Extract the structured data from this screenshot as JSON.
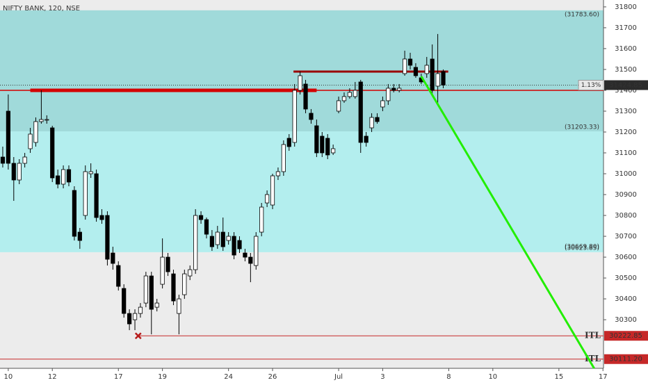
{
  "chart_data": {
    "type": "candlestick",
    "title": "NIFTY BANK, 120, NSE",
    "open": [
      31080,
      31300,
      31050,
      30970,
      31050,
      31120,
      31150,
      31250,
      31260,
      31220,
      30990,
      30950,
      31020,
      30920,
      30720,
      30800,
      31000,
      31000,
      30800,
      30800,
      30620,
      30560,
      30450,
      30330,
      30300,
      30330,
      30380,
      30510,
      30360,
      30470,
      30600,
      30520,
      30330,
      30420,
      30510,
      30540,
      30800,
      30780,
      30700,
      30660,
      30720,
      30680,
      30700,
      30680,
      30620,
      30600,
      30560,
      30720,
      30860,
      30850,
      30990,
      31010,
      31170,
      31150,
      31400,
      31430,
      31290,
      31230,
      31180,
      31170,
      31100,
      31300,
      31350,
      31370,
      31370,
      31440,
      31180,
      31220,
      31270,
      31320,
      31350,
      31410,
      31400,
      31480,
      31550,
      31510,
      31460,
      31480,
      31550,
      31420,
      31490
    ],
    "high": [
      31130,
      31380,
      31080,
      31070,
      31100,
      31220,
      31270,
      31400,
      31280,
      31230,
      31020,
      31040,
      31040,
      30940,
      30740,
      31040,
      31050,
      31020,
      30830,
      30820,
      30650,
      30580,
      30470,
      30350,
      30350,
      30380,
      30530,
      30530,
      30400,
      30690,
      30620,
      30540,
      30420,
      30540,
      30560,
      30830,
      30820,
      30790,
      30730,
      30750,
      30790,
      30720,
      30720,
      30700,
      30640,
      30620,
      30720,
      30860,
      30920,
      31000,
      31030,
      31160,
      31190,
      31430,
      31490,
      31450,
      31310,
      31260,
      31200,
      31190,
      31140,
      31370,
      31390,
      31410,
      31440,
      31450,
      31200,
      31290,
      31290,
      31370,
      31430,
      31430,
      31430,
      31590,
      31580,
      31530,
      31480,
      31560,
      31620,
      31670,
      31500
    ],
    "low": [
      31030,
      31020,
      30870,
      30950,
      31030,
      31100,
      31130,
      31240,
      31240,
      30960,
      30930,
      30930,
      30940,
      30680,
      30640,
      30780,
      30980,
      30770,
      30760,
      30560,
      30540,
      30440,
      30310,
      30250,
      30250,
      30310,
      30360,
      30230,
      30340,
      30450,
      30510,
      30370,
      30230,
      30400,
      30490,
      30520,
      30760,
      30690,
      30630,
      30640,
      30630,
      30660,
      30590,
      30620,
      30580,
      30480,
      30540,
      30700,
      30840,
      30830,
      30970,
      30990,
      31110,
      31130,
      31380,
      31290,
      31240,
      31080,
      31080,
      31070,
      31090,
      31290,
      31340,
      31360,
      31360,
      31100,
      31130,
      31200,
      31240,
      31300,
      31330,
      31390,
      31390,
      31470,
      31500,
      31460,
      31430,
      31460,
      31380,
      31330,
      31410
    ],
    "close": [
      31050,
      31050,
      30970,
      31050,
      31080,
      31190,
      31250,
      31260,
      31260,
      30980,
      30950,
      31020,
      30960,
      30700,
      30680,
      31010,
      31010,
      30790,
      30780,
      30590,
      30570,
      30460,
      30330,
      30280,
      30330,
      30360,
      30510,
      30350,
      30380,
      30600,
      30530,
      30390,
      30400,
      30520,
      30540,
      30800,
      30780,
      30710,
      30650,
      30720,
      30650,
      30700,
      30610,
      30640,
      30600,
      30570,
      30700,
      30840,
      30900,
      30990,
      31010,
      31140,
      31130,
      31400,
      31470,
      31310,
      31260,
      31100,
      31100,
      31090,
      31120,
      31350,
      31370,
      31390,
      31400,
      31150,
      31150,
      31270,
      31250,
      31350,
      31410,
      31400,
      31410,
      31550,
      31520,
      31470,
      31440,
      31520,
      31400,
      31480,
      31425
    ],
    "up_color": "#ffffff",
    "down_color": "#000000",
    "xlim": [
      -0.5,
      109.1
    ],
    "xticks": [
      {
        "value": 1,
        "label": "10"
      },
      {
        "value": 9,
        "label": "12"
      },
      {
        "value": 21,
        "label": "17"
      },
      {
        "value": 29,
        "label": "19"
      },
      {
        "value": 41,
        "label": "24"
      },
      {
        "value": 49,
        "label": "26"
      },
      {
        "value": 61,
        "label": "Jul"
      },
      {
        "value": 69,
        "label": "3"
      },
      {
        "value": 81,
        "label": "8"
      },
      {
        "value": 89,
        "label": "10"
      },
      {
        "value": 101,
        "label": "15"
      },
      {
        "value": 109,
        "label": "17"
      }
    ],
    "ylim": [
      30067,
      31833
    ],
    "yticks": [
      30300,
      30400,
      30500,
      30600,
      30700,
      30800,
      30900,
      31000,
      31100,
      31200,
      31300,
      31400,
      31500,
      31600,
      31700,
      31800
    ],
    "zones": [
      {
        "top": 31783.6,
        "bottom": 31203.33,
        "color": "#a0dada",
        "labels": [
          {
            "value": 31783.6,
            "label": "(31783.60)"
          },
          {
            "value": 31203.33,
            "label": "(31203.33)"
          }
        ]
      },
      {
        "top": 31203.33,
        "bottom": 30623.85,
        "color": "#b3eeee",
        "labels": [
          {
            "value": 30669.8,
            "label": "(30669.80)"
          },
          {
            "value": 30623.85,
            "label": "(30623.85)"
          }
        ]
      }
    ],
    "lines": [
      {
        "value": 31400,
        "color": "#d40000",
        "width": 1.5
      },
      {
        "value": 31400,
        "from": 5,
        "to": 57,
        "color": "#d40000",
        "width": 5
      },
      {
        "value": 31490,
        "from": 52.8,
        "to": 80.9,
        "color": "#9a0000",
        "width": 3
      }
    ],
    "levels": [
      {
        "value": 30222.85,
        "label": "30222.85",
        "tag": "ITL",
        "from": 24.6,
        "color": "#c62828"
      },
      {
        "value": 30111.2,
        "label": "30111.20",
        "tag": "ITL",
        "color": "#c62828"
      }
    ],
    "marker": {
      "x": 24.6,
      "y": 30222.85,
      "color": "#b71c1c"
    },
    "trend_line": {
      "from": [
        76,
        31467
      ],
      "to": [
        107.4,
        30067
      ],
      "color": "#22ee00"
    },
    "last_price": {
      "value": 31424.85,
      "label": "31424.85",
      "change": "1.13%"
    }
  }
}
